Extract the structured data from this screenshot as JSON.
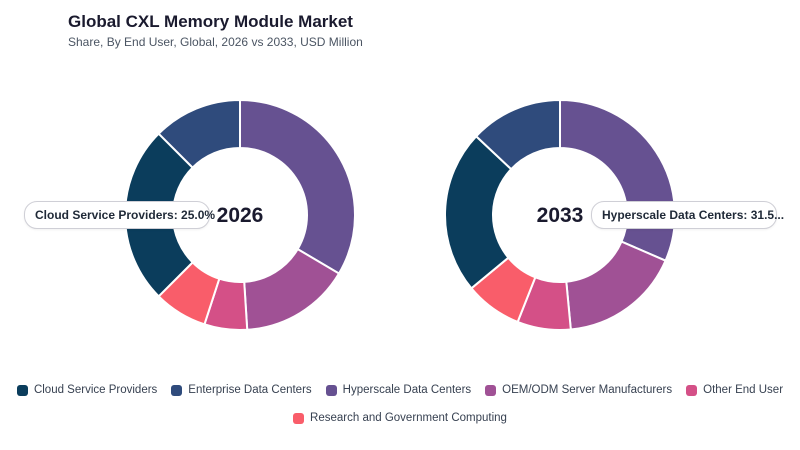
{
  "header": {
    "title": "Global CXL Memory Module Market",
    "subtitle": "Share, By End User, Global, 2026 vs 2033, USD Million"
  },
  "tooltips": [
    "Cloud Service Providers: 25.0%",
    "Hyperscale Data Centers: 31.5..."
  ],
  "chart_data": [
    {
      "type": "pie",
      "center_label": "2026",
      "categories": [
        "Hyperscale Data Centers",
        "OEM/ODM Server Manufacturers",
        "Other End User",
        "Research and Government Computing",
        "Cloud Service Providers",
        "Enterprise Data Centers"
      ],
      "values": [
        33.5,
        15.5,
        6.0,
        7.5,
        25.0,
        12.5
      ]
    },
    {
      "type": "pie",
      "center_label": "2033",
      "categories": [
        "Hyperscale Data Centers",
        "OEM/ODM Server Manufacturers",
        "Other End User",
        "Research and Government Computing",
        "Cloud Service Providers",
        "Enterprise Data Centers"
      ],
      "values": [
        31.5,
        17.0,
        7.5,
        8.0,
        23.0,
        13.0
      ]
    }
  ],
  "legend": [
    {
      "label": "Cloud Service Providers",
      "color": "#0b3d5c"
    },
    {
      "label": "Enterprise Data Centers",
      "color": "#2f4b7c"
    },
    {
      "label": "Hyperscale Data Centers",
      "color": "#665191"
    },
    {
      "label": "OEM/ODM Server Manufacturers",
      "color": "#a05195"
    },
    {
      "label": "Other End User",
      "color": "#d45087"
    },
    {
      "label": "Research and Government Computing",
      "color": "#f95d6a"
    }
  ]
}
